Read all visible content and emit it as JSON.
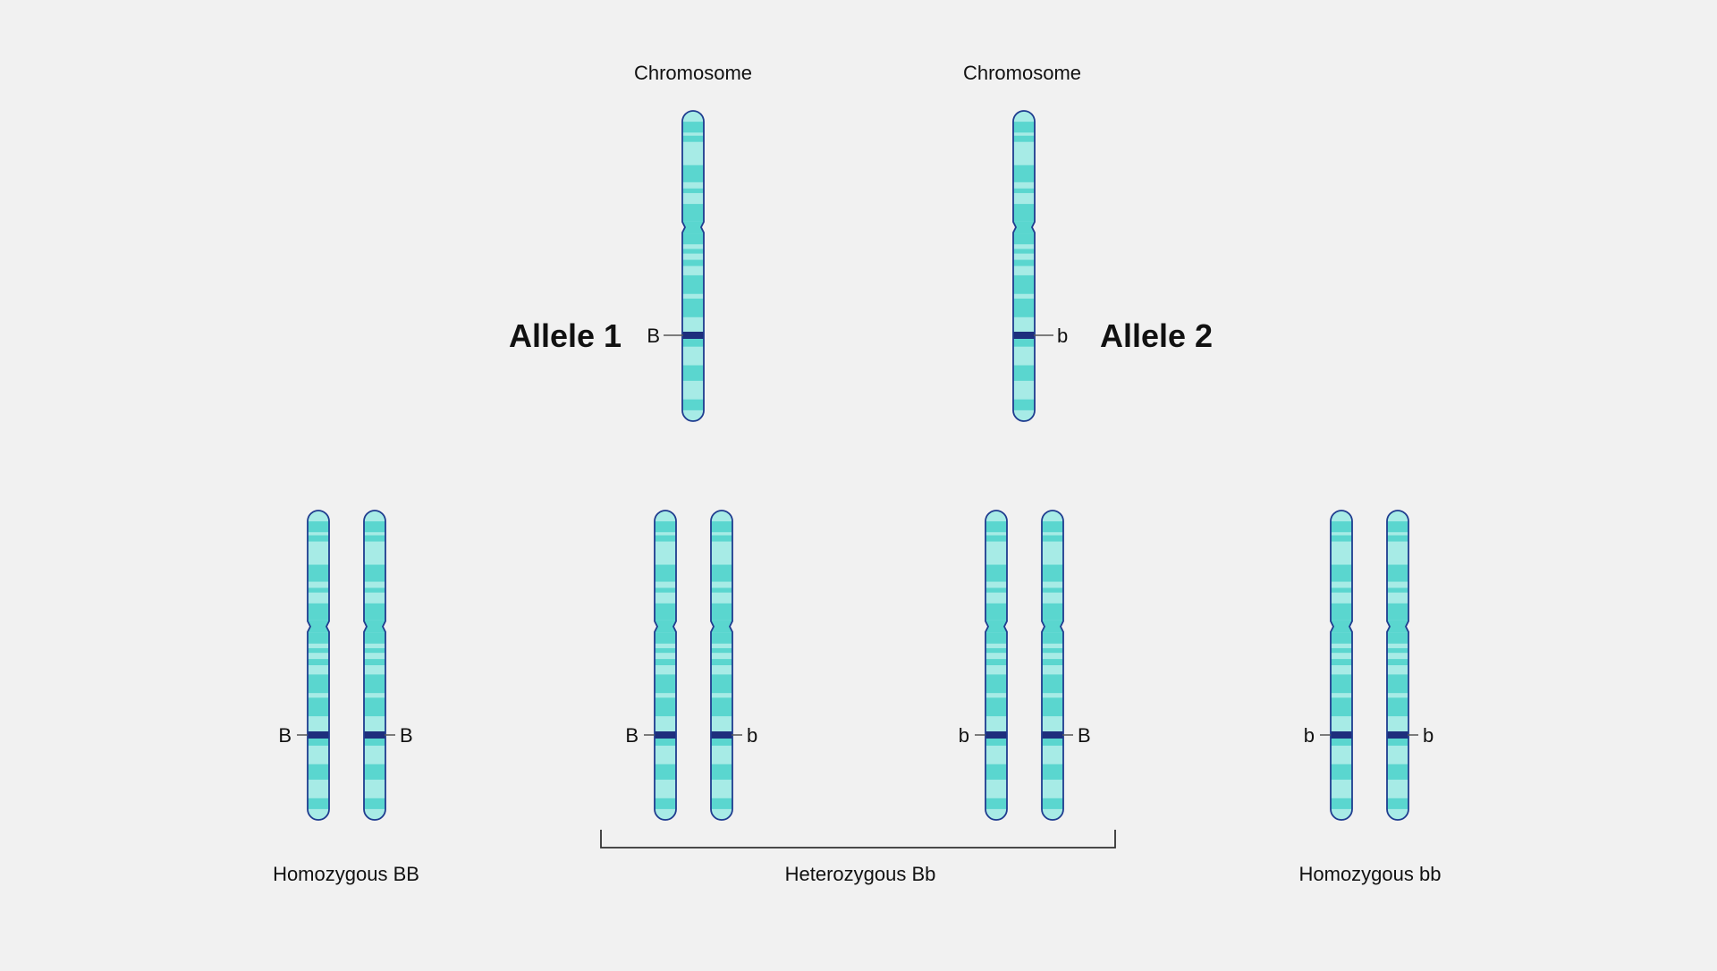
{
  "top": {
    "chromosome_1": {
      "heading": "Chromosome",
      "gene_label": "B",
      "allele_title": "Allele 1"
    },
    "chromosome_2": {
      "heading": "Chromosome",
      "gene_label": "b",
      "allele_title": "Allele 2"
    }
  },
  "pairs": [
    {
      "left_label": "B",
      "right_label": "B",
      "caption": "Homozygous BB"
    },
    {
      "left_label": "B",
      "right_label": "b"
    },
    {
      "left_label": "b",
      "right_label": "B"
    },
    {
      "left_label": "b",
      "right_label": "b",
      "caption": "Homozygous bb"
    }
  ],
  "heterozygous_caption": "Heterozygous Bb",
  "colors": {
    "outline": "#1f3c8f",
    "band_dark": "#5ad6cf",
    "band_light": "#a7ebe6",
    "gene_band": "#1e2f7d",
    "background": "#f1f1f1"
  }
}
